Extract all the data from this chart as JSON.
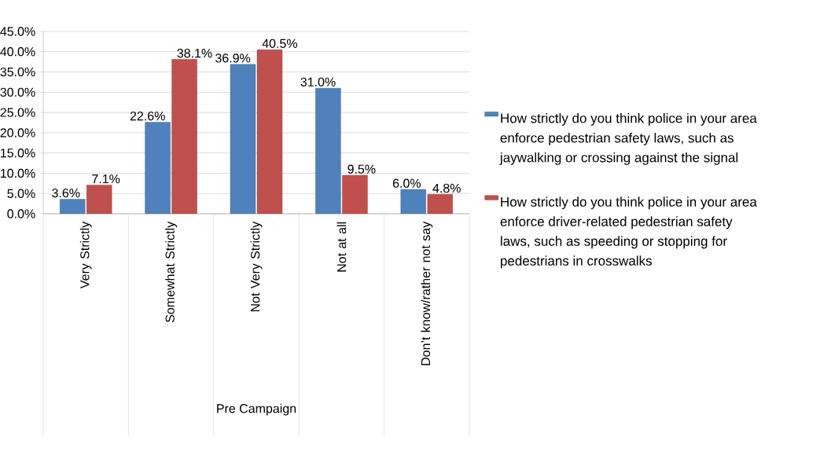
{
  "chart_data": {
    "type": "bar",
    "xlabel": "Pre Campaign",
    "categories": [
      "Very Strictly",
      "Somewhat Strictly",
      "Not Very Strictly",
      "Not at all",
      "Don’t know/rather not say"
    ],
    "series": [
      {
        "name": "How strictly do you think police in your area enforce pedestrian safety laws, such as jaywalking or crossing against the signal",
        "color": "#4f81bd",
        "values": [
          3.6,
          22.6,
          36.9,
          31.0,
          6.0
        ],
        "value_labels": [
          "3.6%",
          "22.6%",
          "36.9%",
          "31.0%",
          "6.0%"
        ]
      },
      {
        "name": "How strictly do you think police in your area enforce driver-related pedestrian safety laws, such as speeding or stopping for pedestrians in crosswalks",
        "color": "#c0504d",
        "values": [
          7.1,
          38.1,
          40.5,
          9.5,
          4.8
        ],
        "value_labels": [
          "7.1%",
          "38.1%",
          "40.5%",
          "9.5%",
          "4.8%"
        ]
      }
    ],
    "ylim": [
      0,
      45
    ],
    "yticks": [
      {
        "value": 0,
        "label": "0.0%"
      },
      {
        "value": 5,
        "label": "5.0%"
      },
      {
        "value": 10,
        "label": "10.0%"
      },
      {
        "value": 15,
        "label": "15.0%"
      },
      {
        "value": 20,
        "label": "20.0%"
      },
      {
        "value": 25,
        "label": "25.0%"
      },
      {
        "value": 30,
        "label": "30.0%"
      },
      {
        "value": 35,
        "label": "35.0%"
      },
      {
        "value": 40,
        "label": "40.0%"
      },
      {
        "value": 45,
        "label": "45.0%"
      }
    ],
    "grid": "y",
    "legend": "right"
  }
}
